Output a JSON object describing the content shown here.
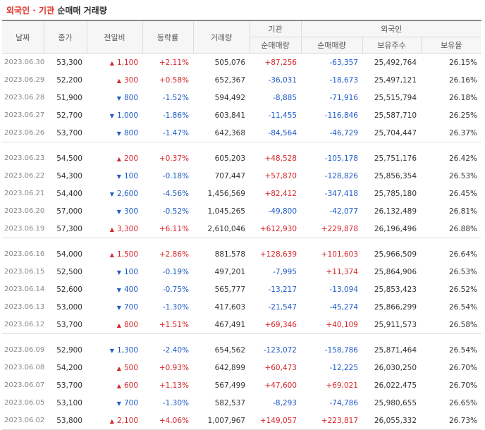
{
  "title": {
    "part1": "외국인 · 기관",
    "part2": "순매매 거래량"
  },
  "headers": {
    "date": "날짜",
    "close": "종가",
    "change": "전일비",
    "rate": "등락률",
    "volume": "거래량",
    "inst": "기관",
    "foreign": "외국인",
    "inst_net": "순매매량",
    "foreign_net": "순매매량",
    "foreign_hold": "보유주수",
    "foreign_ratio": "보유율"
  },
  "colors": {
    "up": "#d6262b",
    "down": "#1f5bc8"
  },
  "groups": [
    [
      {
        "date": "2023.06.30",
        "close": "53,300",
        "dir": "up",
        "change": "1,100",
        "rate": "+2.11%",
        "volume": "505,076",
        "inst": "+87,256",
        "foreign": "-63,357",
        "hold": "25,492,764",
        "ratio": "26.15%"
      },
      {
        "date": "2023.06.29",
        "close": "52,200",
        "dir": "up",
        "change": "300",
        "rate": "+0.58%",
        "volume": "652,367",
        "inst": "-36,031",
        "foreign": "-18,673",
        "hold": "25,497,121",
        "ratio": "26.16%"
      },
      {
        "date": "2023.06.28",
        "close": "51,900",
        "dir": "down",
        "change": "800",
        "rate": "-1.52%",
        "volume": "594,492",
        "inst": "-8,885",
        "foreign": "-71,916",
        "hold": "25,515,794",
        "ratio": "26.18%"
      },
      {
        "date": "2023.06.27",
        "close": "52,700",
        "dir": "down",
        "change": "1,000",
        "rate": "-1.86%",
        "volume": "603,841",
        "inst": "-11,455",
        "foreign": "-116,846",
        "hold": "25,587,710",
        "ratio": "26.25%"
      },
      {
        "date": "2023.06.26",
        "close": "53,700",
        "dir": "down",
        "change": "800",
        "rate": "-1.47%",
        "volume": "642,368",
        "inst": "-84,564",
        "foreign": "-46,729",
        "hold": "25,704,447",
        "ratio": "26.37%"
      }
    ],
    [
      {
        "date": "2023.06.23",
        "close": "54,500",
        "dir": "up",
        "change": "200",
        "rate": "+0.37%",
        "volume": "605,203",
        "inst": "+48,528",
        "foreign": "-105,178",
        "hold": "25,751,176",
        "ratio": "26.42%"
      },
      {
        "date": "2023.06.22",
        "close": "54,300",
        "dir": "down",
        "change": "100",
        "rate": "-0.18%",
        "volume": "707,447",
        "inst": "+57,870",
        "foreign": "-128,826",
        "hold": "25,856,354",
        "ratio": "26.53%"
      },
      {
        "date": "2023.06.21",
        "close": "54,400",
        "dir": "down",
        "change": "2,600",
        "rate": "-4.56%",
        "volume": "1,456,569",
        "inst": "+82,412",
        "foreign": "-347,418",
        "hold": "25,785,180",
        "ratio": "26.45%"
      },
      {
        "date": "2023.06.20",
        "close": "57,000",
        "dir": "down",
        "change": "300",
        "rate": "-0.52%",
        "volume": "1,045,265",
        "inst": "-49,800",
        "foreign": "-42,077",
        "hold": "26,132,489",
        "ratio": "26.81%"
      },
      {
        "date": "2023.06.19",
        "close": "57,300",
        "dir": "up",
        "change": "3,300",
        "rate": "+6.11%",
        "volume": "2,610,046",
        "inst": "+612,930",
        "foreign": "+229,878",
        "hold": "26,196,496",
        "ratio": "26.88%"
      }
    ],
    [
      {
        "date": "2023.06.16",
        "close": "54,000",
        "dir": "up",
        "change": "1,500",
        "rate": "+2.86%",
        "volume": "881,578",
        "inst": "+128,639",
        "foreign": "+101,603",
        "hold": "25,966,509",
        "ratio": "26.64%"
      },
      {
        "date": "2023.06.15",
        "close": "52,500",
        "dir": "down",
        "change": "100",
        "rate": "-0.19%",
        "volume": "497,201",
        "inst": "-7,995",
        "foreign": "+11,374",
        "hold": "25,864,906",
        "ratio": "26.53%"
      },
      {
        "date": "2023.06.14",
        "close": "52,600",
        "dir": "down",
        "change": "400",
        "rate": "-0.75%",
        "volume": "565,777",
        "inst": "-13,217",
        "foreign": "-13,094",
        "hold": "25,853,423",
        "ratio": "26.52%"
      },
      {
        "date": "2023.06.13",
        "close": "53,000",
        "dir": "down",
        "change": "700",
        "rate": "-1.30%",
        "volume": "417,603",
        "inst": "-21,547",
        "foreign": "-45,274",
        "hold": "25,866,299",
        "ratio": "26.54%"
      },
      {
        "date": "2023.06.12",
        "close": "53,700",
        "dir": "up",
        "change": "800",
        "rate": "+1.51%",
        "volume": "467,491",
        "inst": "+69,346",
        "foreign": "+40,109",
        "hold": "25,911,573",
        "ratio": "26.58%"
      }
    ],
    [
      {
        "date": "2023.06.09",
        "close": "52,900",
        "dir": "down",
        "change": "1,300",
        "rate": "-2.40%",
        "volume": "654,562",
        "inst": "-123,072",
        "foreign": "-158,786",
        "hold": "25,871,464",
        "ratio": "26.54%"
      },
      {
        "date": "2023.06.08",
        "close": "54,200",
        "dir": "up",
        "change": "500",
        "rate": "+0.93%",
        "volume": "642,899",
        "inst": "+60,473",
        "foreign": "-12,225",
        "hold": "26,030,250",
        "ratio": "26.70%"
      },
      {
        "date": "2023.06.07",
        "close": "53,700",
        "dir": "up",
        "change": "600",
        "rate": "+1.13%",
        "volume": "567,499",
        "inst": "+47,600",
        "foreign": "+69,021",
        "hold": "26,022,475",
        "ratio": "26.70%"
      },
      {
        "date": "2023.06.05",
        "close": "53,100",
        "dir": "down",
        "change": "700",
        "rate": "-1.30%",
        "volume": "582,537",
        "inst": "-8,293",
        "foreign": "-74,786",
        "hold": "25,980,655",
        "ratio": "26.65%"
      },
      {
        "date": "2023.06.02",
        "close": "53,800",
        "dir": "up",
        "change": "2,100",
        "rate": "+4.06%",
        "volume": "1,007,967",
        "inst": "+149,057",
        "foreign": "+223,817",
        "hold": "26,055,332",
        "ratio": "26.73%"
      }
    ]
  ]
}
